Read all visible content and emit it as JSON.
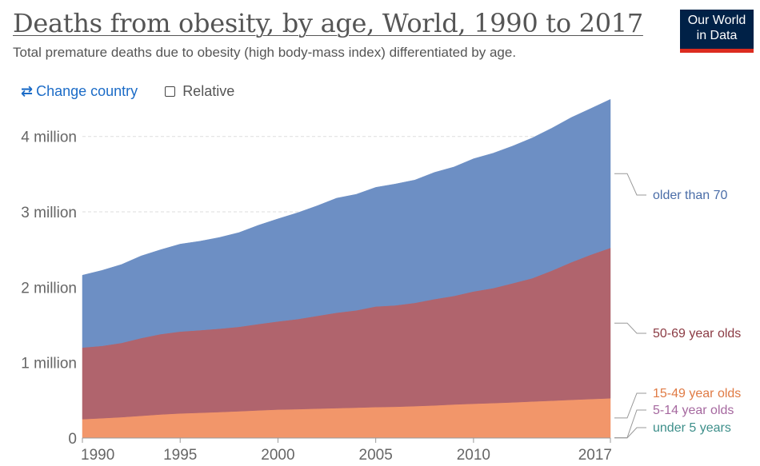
{
  "header": {
    "title": "Deaths from obesity, by age, World, 1990 to 2017",
    "subtitle": "Total premature deaths due to obesity (high body-mass index) differentiated by age."
  },
  "logo": {
    "line1": "Our World",
    "line2": "in Data"
  },
  "controls": {
    "swap_icon": "swap-arrows-icon",
    "change_country_label": "Change country",
    "relative_label": "Relative",
    "relative_checked": false
  },
  "colors": {
    "older_than_70": "#6d8fc4",
    "50_69": "#b0646d",
    "15_49": "#f2966a",
    "5_14": "#a5689f",
    "under_5": "#3d8f8a",
    "link": "#1c6cc7",
    "logo_bg": "#002147",
    "logo_accent": "#dc2c1f"
  },
  "chart_data": {
    "type": "area",
    "stacked": true,
    "title": "Deaths from obesity, by age, World, 1990 to 2017",
    "x": [
      1990,
      1991,
      1992,
      1993,
      1994,
      1995,
      1996,
      1997,
      1998,
      1999,
      2000,
      2001,
      2002,
      2003,
      2004,
      2005,
      2006,
      2007,
      2008,
      2009,
      2010,
      2011,
      2012,
      2013,
      2014,
      2015,
      2016,
      2017
    ],
    "xticks": [
      "1990",
      "1995",
      "2000",
      "2005",
      "2010",
      "2017"
    ],
    "yticks": [
      0,
      1000000,
      2000000,
      3000000,
      4000000
    ],
    "ytick_labels": [
      "0",
      "1 million",
      "2 million",
      "3 million",
      "4 million"
    ],
    "ylim": [
      0,
      4750000
    ],
    "series": [
      {
        "name": "under 5 years",
        "key": "under_5",
        "color": "#3d8f8a",
        "values": [
          3000,
          3000,
          3000,
          3000,
          3000,
          3000,
          3000,
          3000,
          3000,
          3000,
          3000,
          3000,
          3000,
          3000,
          3000,
          3000,
          3000,
          3000,
          3000,
          3000,
          3000,
          3000,
          3000,
          3000,
          3000,
          3000,
          3000,
          3000
        ]
      },
      {
        "name": "5-14 year olds",
        "key": "5_14",
        "color": "#a5689f",
        "values": [
          2000,
          2000,
          2000,
          2000,
          2000,
          2000,
          2000,
          2000,
          2000,
          2000,
          2000,
          2000,
          2000,
          2000,
          2000,
          2000,
          2000,
          2000,
          2000,
          2000,
          2000,
          2000,
          2000,
          2000,
          2000,
          2000,
          2000,
          2000
        ]
      },
      {
        "name": "15-49 year olds",
        "key": "15_49",
        "color": "#f2966a",
        "values": [
          245000,
          258000,
          272000,
          290000,
          308000,
          322000,
          330000,
          340000,
          350000,
          362000,
          372000,
          378000,
          385000,
          392000,
          398000,
          405000,
          410000,
          418000,
          428000,
          440000,
          450000,
          458000,
          468000,
          480000,
          490000,
          502000,
          512000,
          522000
        ]
      },
      {
        "name": "50-69 year olds",
        "key": "50_69",
        "color": "#b0646d",
        "values": [
          950000,
          960000,
          985000,
          1030000,
          1065000,
          1085000,
          1095000,
          1105000,
          1120000,
          1145000,
          1170000,
          1195000,
          1230000,
          1265000,
          1290000,
          1335000,
          1345000,
          1370000,
          1410000,
          1440000,
          1490000,
          1525000,
          1580000,
          1635000,
          1725000,
          1825000,
          1915000,
          1995000
        ]
      },
      {
        "name": "older than 70",
        "key": "older_than_70",
        "color": "#6d8fc4",
        "values": [
          960000,
          1000000,
          1040000,
          1090000,
          1120000,
          1160000,
          1180000,
          1210000,
          1250000,
          1310000,
          1360000,
          1410000,
          1460000,
          1520000,
          1540000,
          1580000,
          1610000,
          1630000,
          1680000,
          1710000,
          1760000,
          1790000,
          1820000,
          1860000,
          1890000,
          1920000,
          1940000,
          1970000
        ]
      }
    ],
    "legend_position": "right",
    "grid": "horizontal dashed"
  }
}
